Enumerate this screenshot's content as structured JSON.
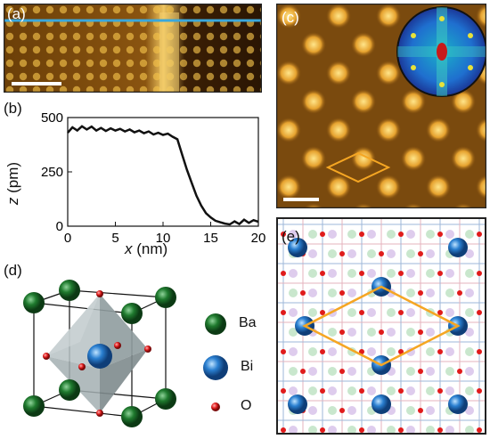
{
  "panels": {
    "a": {
      "label": "(a)"
    },
    "b": {
      "label": "(b)"
    },
    "c": {
      "label": "(c)"
    },
    "d": {
      "label": "(d)"
    },
    "e": {
      "label": "(e)"
    }
  },
  "chart_data": {
    "type": "line",
    "xlabel_var": "x",
    "xlabel_unit": " (nm)",
    "ylabel_var": "z",
    "ylabel_unit": " (pm)",
    "xlim": [
      0,
      20
    ],
    "ylim": [
      0,
      500
    ],
    "xticks": [
      "0",
      "5",
      "10",
      "15",
      "20"
    ],
    "yticks": [
      "0",
      "250",
      "500"
    ],
    "x": [
      0,
      0.5,
      1,
      1.5,
      2,
      2.5,
      3,
      3.5,
      4,
      4.5,
      5,
      5.5,
      6,
      6.5,
      7,
      7.5,
      8,
      8.5,
      9,
      9.5,
      10,
      10.5,
      11,
      11.5,
      12,
      12.5,
      13,
      13.5,
      14,
      14.5,
      15,
      15.5,
      16,
      16.5,
      17,
      17.5,
      18,
      18.5,
      19,
      19.5,
      20
    ],
    "y": [
      430,
      455,
      440,
      460,
      445,
      458,
      440,
      452,
      438,
      450,
      440,
      448,
      436,
      445,
      432,
      440,
      428,
      436,
      422,
      430,
      420,
      426,
      412,
      400,
      330,
      260,
      200,
      140,
      95,
      60,
      40,
      25,
      18,
      12,
      8,
      22,
      10,
      30,
      15,
      28,
      20
    ]
  },
  "legend_d": {
    "ba": "Ba",
    "bi": "Bi",
    "o": "O"
  },
  "colors": {
    "ba": "#1f7a2e",
    "bi": "#2a7fd0",
    "o": "#e01b1b",
    "profile_line": "#3aa8dc",
    "cell": "#f5a623"
  }
}
